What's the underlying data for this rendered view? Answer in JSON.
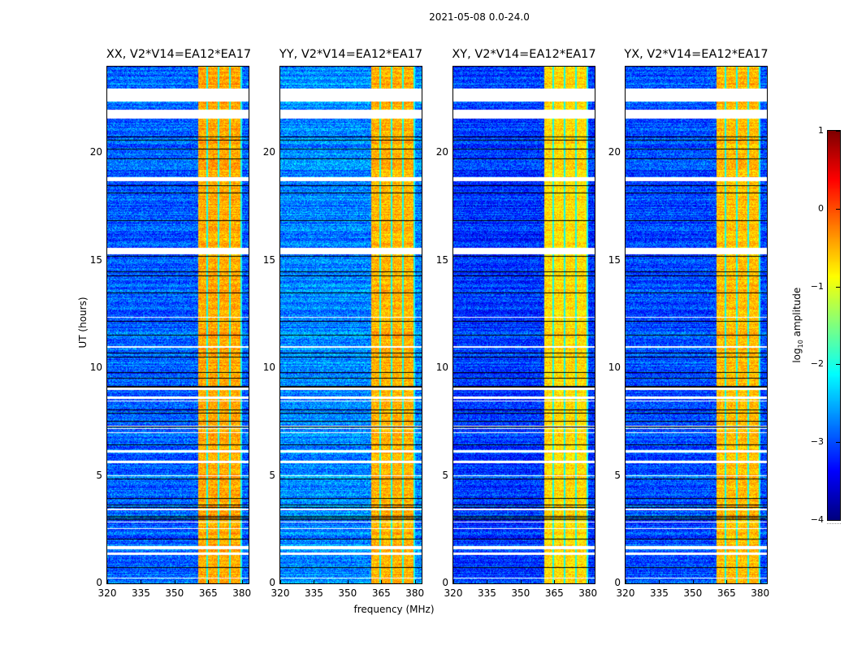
{
  "chart_data": {
    "type": "heatmap",
    "title": "2021-05-08 0.0-24.0",
    "xlabel": "frequency (MHz)",
    "ylabel": "UT (hours)",
    "xlim": [
      320,
      383
    ],
    "ylim": [
      0,
      24
    ],
    "xticks": [
      320,
      335,
      350,
      365,
      380
    ],
    "yticks": [
      0,
      5,
      10,
      15,
      20
    ],
    "panels": [
      {
        "name": "XX",
        "title": "XX, V2*V14=EA12*EA17",
        "baseline": -2.9,
        "band_level": -0.45
      },
      {
        "name": "YY",
        "title": "YY, V2*V14=EA12*EA17",
        "baseline": -2.7,
        "band_level": -0.5
      },
      {
        "name": "XY",
        "title": "XY, V2*V14=EA12*EA17",
        "baseline": -3.1,
        "band_level": -0.7
      },
      {
        "name": "YX",
        "title": "YX, V2*V14=EA12*EA17",
        "baseline": -3.0,
        "band_level": -0.55
      }
    ],
    "bright_band_MHz": [
      360.5,
      380.0
    ],
    "band_gaps_MHz": [
      364.5,
      369.5,
      374.5,
      379.5
    ],
    "flagged_UT_hours": [
      [
        22.4,
        23.0
      ],
      [
        21.6,
        22.0
      ],
      [
        18.7,
        18.9
      ],
      [
        15.3,
        15.6
      ],
      [
        10.95,
        11.02
      ],
      [
        9.0,
        9.1
      ],
      [
        8.6,
        8.7
      ],
      [
        6.1,
        6.2
      ],
      [
        5.6,
        5.7
      ],
      [
        3.4,
        3.5
      ],
      [
        1.6,
        1.75
      ],
      [
        1.35,
        1.45
      ],
      [
        0.25,
        0.3
      ]
    ],
    "colorbar": {
      "label": "log10 amplitude",
      "label_main": "log",
      "label_sub": "10",
      "label_rest": " amplitude",
      "range": [
        -4,
        1
      ],
      "ticks": [
        "1",
        "0",
        "−1",
        "−2",
        "−3",
        "−4"
      ],
      "tick_values": [
        1,
        0,
        -1,
        -2,
        -3,
        -4
      ],
      "colormap": "jet"
    }
  }
}
